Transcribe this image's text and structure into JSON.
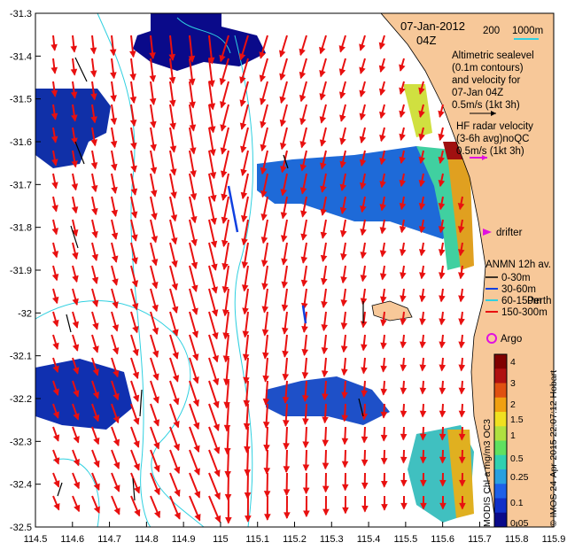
{
  "header": {
    "date": "07-Jan-2012",
    "time": "04Z",
    "scale_200": "200",
    "scale_1000": "1000m"
  },
  "legend": {
    "altimetric": [
      "Altimetric sealevel",
      "(0.1m contours)",
      "and velocity for",
      "07-Jan 04Z",
      "0.5m/s (1kt 3h)"
    ],
    "hf_radar": [
      "HF radar velocity",
      "(3-6h avg)noQC",
      "0.5m/s (1kt 3h)"
    ],
    "drifter": "drifter",
    "anmn": {
      "title": "ANMN 12h av.",
      "items": [
        "0-30m",
        "30-60m",
        "60-150m",
        "150-300m"
      ]
    },
    "argo": "Argo",
    "place": "Perth",
    "hobart": "Hobart"
  },
  "credits": {
    "left": "MODIS Chl-a mg/m3 OC3",
    "right": "© IMOS 24-Apr-2015 22:07:12 Hobart"
  },
  "axes": {
    "x_ticks": [
      "114.5",
      "114.6",
      "114.7",
      "114.8",
      "114.9",
      "115",
      "115.1",
      "115.2",
      "115.3",
      "115.4",
      "115.5",
      "115.6",
      "115.7",
      "115.8",
      "115.9"
    ],
    "y_ticks": [
      "-31.3",
      "-31.4",
      "-31.5",
      "-31.6",
      "-31.7",
      "-31.8",
      "-31.9",
      "-32",
      "-32.1",
      "-32.2",
      "-32.3",
      "-32.4",
      "-32.5"
    ]
  },
  "colorbar": {
    "ticks": [
      "4",
      "3",
      "2",
      "1.5",
      "1",
      "0.5",
      "0.25",
      "0.1",
      "0.05"
    ],
    "colors": [
      "#0a0a8a",
      "#1030c8",
      "#1e60e8",
      "#2aa0e0",
      "#30d0b0",
      "#60e060",
      "#b0e040",
      "#f0e020",
      "#f0a010",
      "#e05010",
      "#b01010",
      "#800000"
    ]
  },
  "colors": {
    "land": "#f7c899",
    "vector_red": "#e81010",
    "hf_black": "#000000",
    "contour": "#30d0e0",
    "argo": "#e010e0"
  }
}
